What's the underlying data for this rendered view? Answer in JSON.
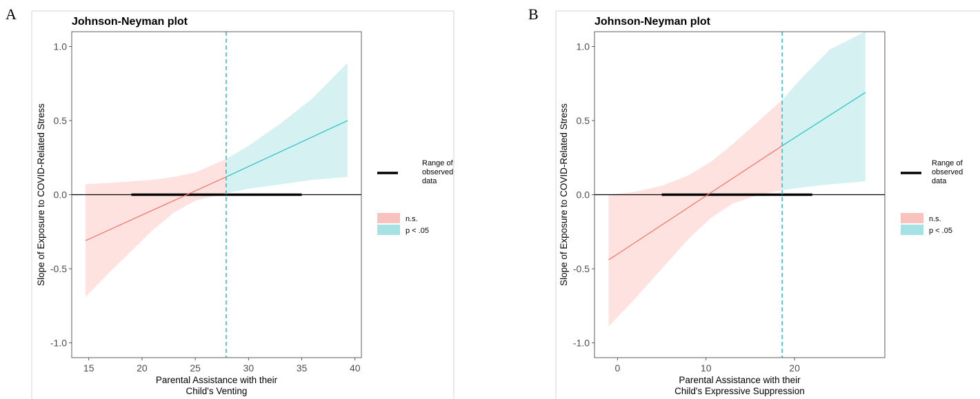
{
  "panels": [
    {
      "letter": "A"
    },
    {
      "letter": "B"
    }
  ],
  "legend": {
    "range_label_lines": [
      "Range of",
      "observed",
      "data"
    ],
    "ns_label": "n.s.",
    "sig_label": "p < .05"
  },
  "colors": {
    "ns_line": "#F8766D",
    "ns_band": "#FDE2E0",
    "ns_key": "#F8C3BF",
    "sig_line": "#2CC4C8",
    "sig_band": "#D6F1F2",
    "sig_key": "#A6E2E4",
    "threshold": "#37BFCB",
    "range_bar": "#000000"
  },
  "chart_data": [
    {
      "type": "line",
      "title": "Johnson-Neyman plot",
      "xlabel": [
        "Parental Assistance with their",
        "Child's Venting"
      ],
      "ylabel": "Slope of Exposure to COVID-Related Stress",
      "xlim": [
        13.4,
        40.6
      ],
      "ylim": [
        -1.1,
        1.1
      ],
      "xticks": [
        15,
        20,
        25,
        30,
        35,
        40
      ],
      "yticks": [
        -1.0,
        -0.5,
        0.0,
        0.5,
        1.0
      ],
      "ytick_labels": [
        "-1.0",
        "-0.5",
        "0.0",
        "0.5",
        "1.0"
      ],
      "threshold_x": 27.9,
      "observed_range": [
        19,
        35
      ],
      "series": [
        {
          "x": [
            14.7,
            27.9,
            39.3
          ],
          "y": [
            -0.31,
            0.12,
            0.5
          ]
        }
      ],
      "band_x": [
        14.7,
        17,
        19,
        21,
        23,
        25,
        27.9,
        30,
        33,
        36,
        39.3
      ],
      "band_lower": [
        -0.69,
        -0.52,
        -0.38,
        -0.24,
        -0.12,
        -0.04,
        0.01,
        0.04,
        0.07,
        0.1,
        0.12
      ],
      "band_upper": [
        0.07,
        0.08,
        0.09,
        0.1,
        0.12,
        0.15,
        0.24,
        0.33,
        0.48,
        0.65,
        0.89
      ]
    },
    {
      "type": "line",
      "title": "Johnson-Neyman plot",
      "xlabel": [
        "Parental Assistance with their",
        "Child's Expressive Suppression"
      ],
      "ylabel": "Slope of Exposure to COVID-Related Stress",
      "xlim": [
        -2.6,
        30.2
      ],
      "ylim": [
        -1.1,
        1.1
      ],
      "xticks": [
        0,
        10,
        20
      ],
      "yticks": [
        -1.0,
        -0.5,
        0.0,
        0.5,
        1.0
      ],
      "ytick_labels": [
        "-1.0",
        "-0.5",
        "0.0",
        "0.5",
        "1.0"
      ],
      "threshold_x": 18.6,
      "observed_range": [
        5,
        22
      ],
      "series": [
        {
          "x": [
            -1.0,
            18.6,
            28.0
          ],
          "y": [
            -0.44,
            0.33,
            0.69
          ]
        }
      ],
      "band_x": [
        -1.0,
        2,
        5,
        8,
        10.5,
        13,
        16,
        18.6,
        21,
        24,
        28.0
      ],
      "band_lower": [
        -0.89,
        -0.7,
        -0.5,
        -0.3,
        -0.16,
        -0.06,
        0.0,
        0.03,
        0.05,
        0.07,
        0.09
      ],
      "band_upper": [
        0.0,
        0.02,
        0.06,
        0.13,
        0.22,
        0.34,
        0.5,
        0.64,
        0.8,
        0.98,
        1.1
      ]
    }
  ]
}
